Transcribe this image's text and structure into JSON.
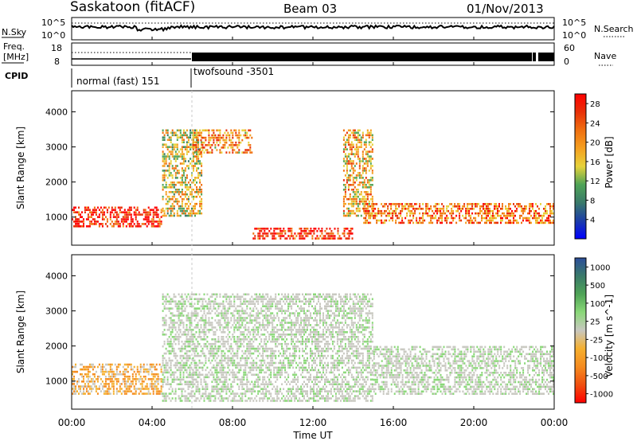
{
  "header": {
    "station": "Saskatoon (fitACF)",
    "beam": "Beam 03",
    "date": "01/Nov/2013"
  },
  "summary_panel": {
    "nsky_label": "N.Sky",
    "nsky_ticks": [
      "10^5",
      "10^0"
    ],
    "nsearch_label": "N.Search",
    "nsearch_ticks": [
      "10^5",
      "10^0"
    ],
    "freq_label_line1": "Freq.",
    "freq_label_line2": "[MHz]",
    "freq_ticks": [
      "18",
      "8"
    ],
    "nave_label": "Nave",
    "nave_ticks": [
      "60",
      "0"
    ],
    "cpid_label": "CPID",
    "cpid_modes": [
      {
        "name": "normal (fast) 151",
        "start_hour": 0,
        "end_hour": 6
      },
      {
        "name": "twofsound -3501",
        "start_hour": 6,
        "end_hour": 24
      }
    ]
  },
  "time_axis": {
    "label": "Time UT",
    "ticks": [
      "00:00",
      "04:00",
      "08:00",
      "12:00",
      "16:00",
      "20:00",
      "00:00"
    ],
    "range_hours": [
      0,
      24
    ]
  },
  "chart_data": [
    {
      "type": "heatmap",
      "panel": "power",
      "ylabel": "Slant Range [km]",
      "yticks": [
        "1000",
        "2000",
        "3000",
        "4000"
      ],
      "ylim": [
        200,
        4600
      ],
      "colorbar_label": "Power [dB]",
      "colorbar_ticks": [
        "4",
        "8",
        "12",
        "16",
        "20",
        "24",
        "28"
      ],
      "colorbar_range": [
        0,
        30
      ],
      "colorscale": [
        "#0000ff",
        "#1c3ea8",
        "#3a7a6a",
        "#4fa456",
        "#e6d23a",
        "#f5a020",
        "#f07010",
        "#e83008",
        "#ff0000"
      ],
      "features": [
        {
          "name": "near-range echo band",
          "x_hours": [
            0,
            4.5
          ],
          "range_km": [
            700,
            1300
          ],
          "power_db": 28
        },
        {
          "name": "rising scatter arc",
          "x_hours": [
            4.5,
            6.5
          ],
          "range_km": [
            1000,
            3500
          ],
          "power_db": 16
        },
        {
          "name": "overhead scatter",
          "x_hours": [
            6,
            9
          ],
          "range_km": [
            2800,
            3500
          ],
          "power_db": 20
        },
        {
          "name": "midday ground scatter",
          "x_hours": [
            9,
            14
          ],
          "range_km": [
            350,
            700
          ],
          "power_db": 28
        },
        {
          "name": "descending scatter arc",
          "x_hours": [
            13.5,
            15
          ],
          "range_km": [
            1000,
            3500
          ],
          "power_db": 18
        },
        {
          "name": "evening echo band",
          "x_hours": [
            14.5,
            24
          ],
          "range_km": [
            800,
            1400
          ],
          "power_db": 22
        }
      ]
    },
    {
      "type": "heatmap",
      "panel": "velocity",
      "ylabel": "Slant Range [km]",
      "yticks": [
        "1000",
        "2000",
        "3000",
        "4000"
      ],
      "ylim": [
        200,
        4600
      ],
      "colorbar_label": "Velocity [m s^-1]",
      "colorbar_ticks": [
        "1000",
        "500",
        "100",
        "25",
        "-25",
        "-100",
        "-500",
        "-1000"
      ],
      "colorbar_range": [
        -1200,
        1200
      ],
      "colorscale": [
        "#ff0000",
        "#f05010",
        "#f58c20",
        "#f5b030",
        "#c8c8c0",
        "#8ad878",
        "#4fa456",
        "#3a7a6a",
        "#2c4e9a"
      ],
      "features": [
        {
          "name": "near-range flow",
          "x_hours": [
            0,
            4.5
          ],
          "range_km": [
            600,
            1500
          ],
          "velocity_ms": -300
        },
        {
          "name": "ground scatter arc",
          "x_hours": [
            4.5,
            15
          ],
          "range_km": [
            400,
            3500
          ],
          "velocity_ms": 0
        },
        {
          "name": "evening flow",
          "x_hours": [
            15,
            24
          ],
          "range_km": [
            600,
            2000
          ],
          "velocity_ms": 0
        }
      ]
    }
  ]
}
